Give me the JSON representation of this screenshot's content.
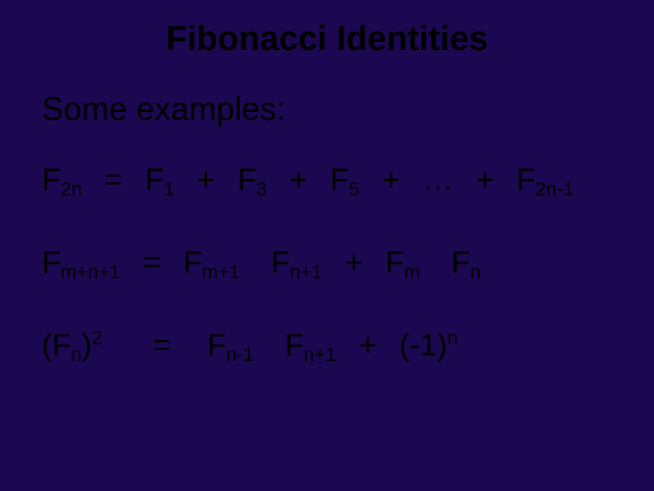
{
  "background_color": "#1b0850",
  "text_color": "#000000",
  "font_family": "Comic Sans MS",
  "title": {
    "text": "Fibonacci Identities",
    "fontsize": 38,
    "fontweight": "bold",
    "align": "center"
  },
  "subhead": {
    "text": "Some examples:",
    "fontsize": 36
  },
  "equations": {
    "fontsize": 34,
    "sub_sup_scale": 0.62,
    "eq1": {
      "lhs_base": "F",
      "lhs_sub": "2n",
      "rhs": {
        "term1_base": "F",
        "term1_sub": "1",
        "plus1": "+",
        "term2_base": "F",
        "term2_sub": "3",
        "plus2": "+",
        "term3_base": "F",
        "term3_sub": "5",
        "plus3": "+",
        "dots": "…",
        "plus4": "+",
        "term4_base": "F",
        "term4_sub": "2n-1"
      },
      "eq": "="
    },
    "eq2": {
      "lhs_base": "F",
      "lhs_sub": "m+n+1",
      "eq": "=",
      "rhs": {
        "t1_base": "F",
        "t1_sub": "m+1",
        "t2_base": "F",
        "t2_sub": "n+1",
        "plus": "+",
        "t3_base": "F",
        "t3_sub": "m",
        "t4_base": "F",
        "t4_sub": "n"
      }
    },
    "eq3": {
      "lhs_open": "(",
      "lhs_base": "F",
      "lhs_sub": "n",
      "lhs_close": ")",
      "lhs_sup": "2",
      "eq": "=",
      "rhs": {
        "t1_base": "F",
        "t1_sub": "n-1",
        "t2_base": "F",
        "t2_sub": "n+1",
        "plus": "+",
        "neg_open": "(-1)",
        "neg_sup": "n"
      }
    }
  }
}
